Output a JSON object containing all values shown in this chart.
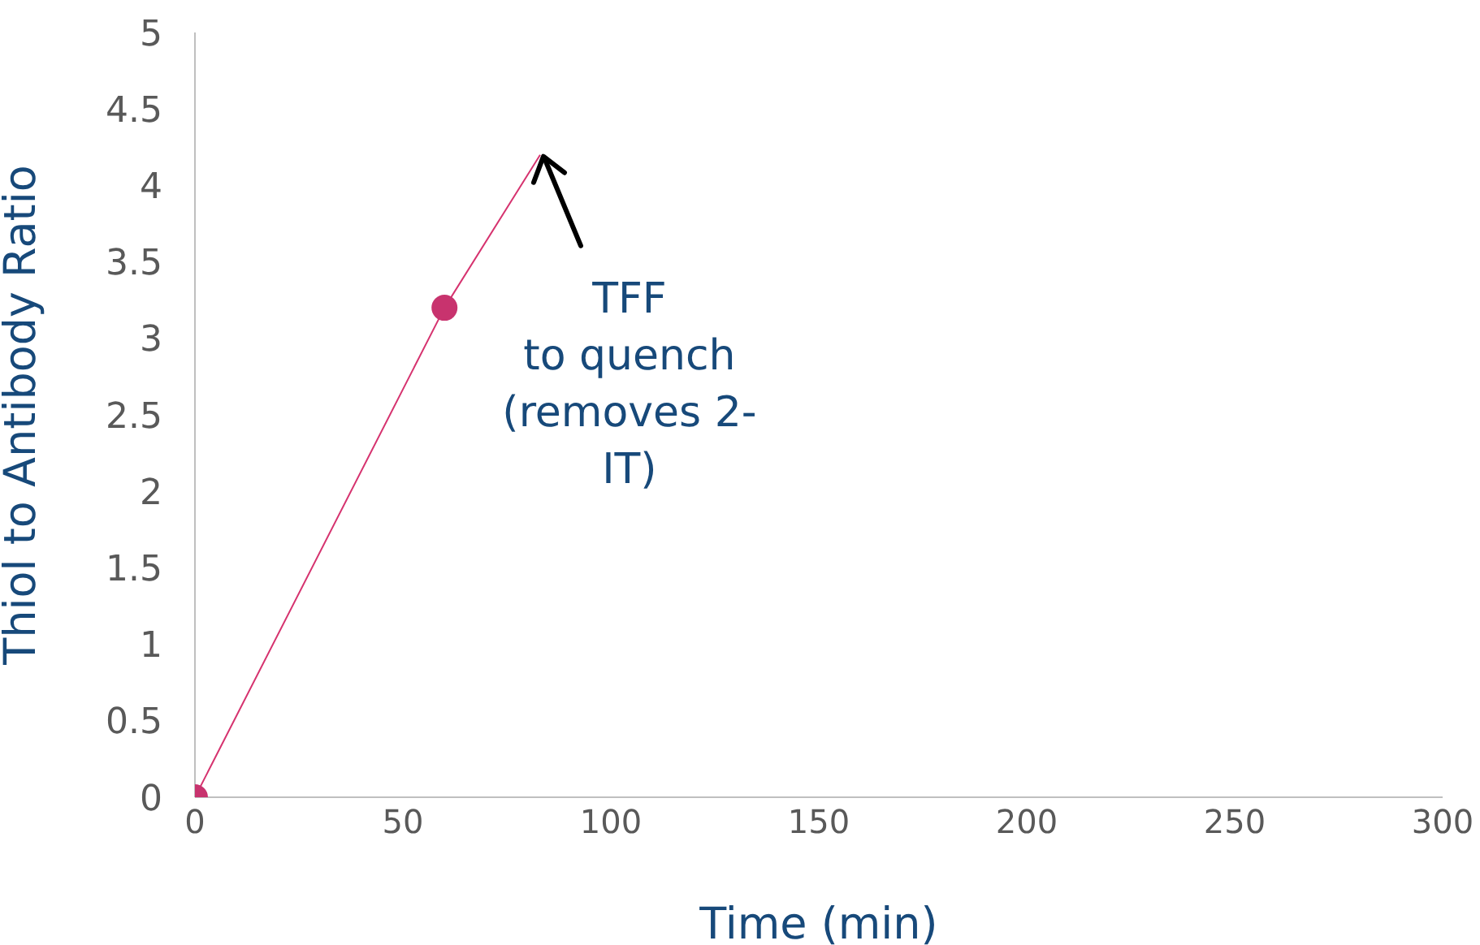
{
  "chart_data": {
    "type": "line",
    "xlabel": "Time (min)",
    "ylabel": "Thiol to Antibody Ratio",
    "xlim": [
      0,
      300
    ],
    "xticks": [
      0,
      50,
      100,
      150,
      200,
      250,
      300
    ],
    "ylim": [
      0,
      5
    ],
    "yticks": [
      0,
      0.5,
      1,
      1.5,
      2,
      2.5,
      3,
      3.5,
      4,
      4.5,
      5
    ],
    "grid": false,
    "legend": false,
    "series": [
      {
        "color": "#d6336f",
        "x": [
          0,
          60,
          83
        ],
        "values": [
          0,
          3.2,
          4.2
        ],
        "marker": "none"
      },
      {
        "type": "scatter",
        "color": "#c8336e",
        "x": [
          0,
          60
        ],
        "values": [
          0,
          3.2
        ],
        "marker": "circle"
      }
    ],
    "annotations": [
      {
        "text": "TFF\nto quench\n(removes 2-\nIT)",
        "x": 83,
        "y": 4.2
      }
    ]
  }
}
